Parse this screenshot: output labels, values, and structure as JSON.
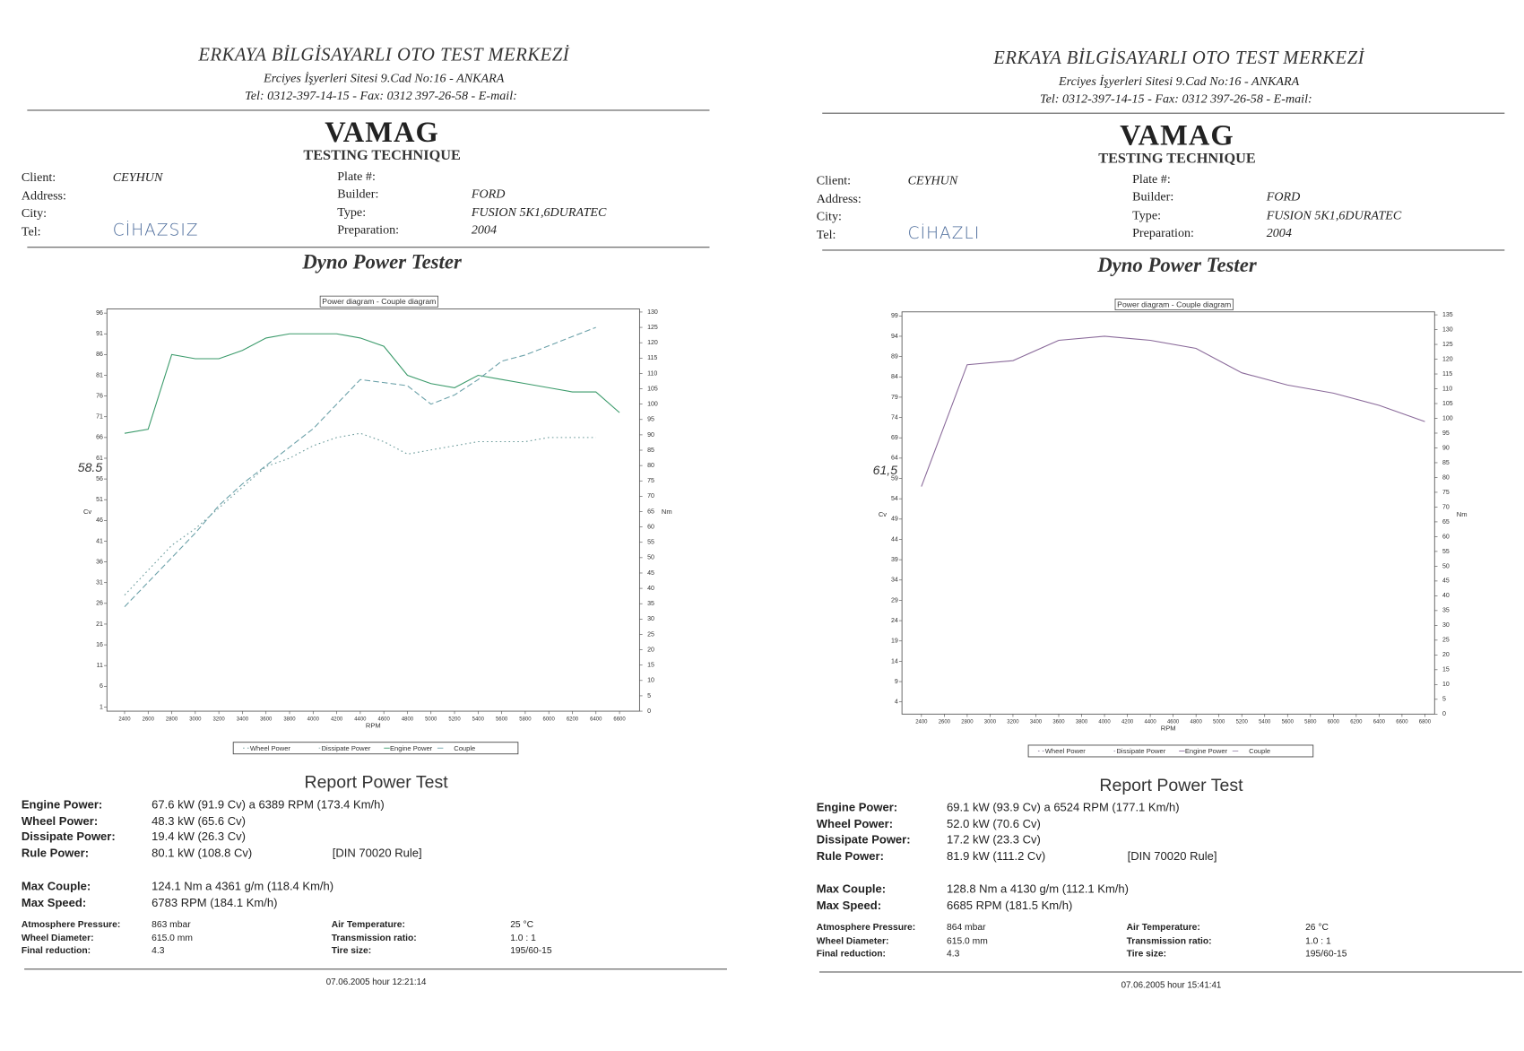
{
  "reports": [
    {
      "header": {
        "company": "ERKAYA BİLGİSAYARLI OTO TEST MERKEZİ",
        "address": "Erciyes İşyerleri Sitesi 9.Cad No:16 - ANKARA",
        "contact": "Tel: 0312-397-14-15 - Fax: 0312 397-26-58 - E-mail:",
        "brand": "VAMAG",
        "subtitle": "TESTING TECHNIQUE"
      },
      "client_fields": [
        {
          "label": "Client:",
          "value": "CEYHUN"
        },
        {
          "label": "Address:"
        },
        {
          "label": "City:"
        },
        {
          "label": "Tel:",
          "value": "CİHAZSIZ"
        }
      ],
      "vehicle_fields": [
        {
          "label": "Plate #:"
        },
        {
          "label": "Builder:",
          "value": "FORD"
        },
        {
          "label": "Type:",
          "value": "FUSION 5K1,6DURATEC"
        },
        {
          "label": "Preparation:",
          "value": "2004"
        }
      ],
      "section_title": "Dyno Power Tester",
      "chart": {
        "type": "line",
        "title": "Power diagram - Couple diagram",
        "x_label": "RPM",
        "y_label": "Cv",
        "y2_label": "Nm",
        "annotation": "58.5",
        "x": [
          2400,
          2600,
          2800,
          3000,
          3200,
          3400,
          3600,
          3800,
          4000,
          4200,
          4400,
          4600,
          4800,
          5000,
          5200,
          5400,
          5600,
          5800,
          6000,
          6200,
          6400,
          6600
        ],
        "xlim": [
          2250,
          6770
        ],
        "xticks": [
          2400,
          2600,
          2800,
          3000,
          3200,
          3400,
          3600,
          3800,
          4000,
          4200,
          4400,
          4600,
          4800,
          5000,
          5200,
          5400,
          5600,
          5800,
          6000,
          6200,
          6400,
          6600
        ],
        "ylim": [
          0,
          97
        ],
        "yticks": [
          1,
          6,
          11,
          16,
          21,
          26,
          31,
          36,
          41,
          46,
          51,
          56,
          61,
          66,
          71,
          76,
          81,
          86,
          91,
          96
        ],
        "y2lim": [
          0,
          131
        ],
        "y2ticks": [
          0,
          5,
          10,
          15,
          20,
          25,
          30,
          35,
          40,
          45,
          50,
          55,
          60,
          65,
          70,
          75,
          80,
          85,
          90,
          95,
          100,
          105,
          110,
          115,
          120,
          125,
          130
        ],
        "series": [
          {
            "name": "Wheel Power",
            "color": "#6a9a9a",
            "style": "dotted",
            "values": [
              28,
              34,
              40,
              44,
              49,
              54,
              59,
              61,
              64,
              66,
              67,
              65,
              62,
              63,
              64,
              65,
              65,
              65,
              66,
              66,
              66,
              null
            ]
          },
          {
            "name": "Dissipate Power",
            "color": "#8aa",
            "style": "dotted",
            "values": [
              null,
              null,
              null,
              null,
              null,
              null,
              null,
              null,
              null,
              null,
              null,
              null,
              null,
              null,
              null,
              null,
              null,
              null,
              null,
              null,
              null,
              null
            ]
          },
          {
            "name": "Engine Power",
            "color": "#3a9a6a",
            "style": "solid",
            "values": [
              67,
              68,
              86,
              85,
              85,
              87,
              90,
              91,
              91,
              91,
              90,
              88,
              81,
              79,
              78,
              81,
              80,
              79,
              78,
              77,
              77,
              72
            ]
          },
          {
            "name": "Couple",
            "color": "#6aa0a8",
            "style": "dashed",
            "axis": "y2",
            "values": [
              34,
              42,
              50,
              58,
              67,
              74,
              80,
              86,
              92,
              100,
              108,
              107,
              106,
              100,
              103,
              108,
              114,
              116,
              119,
              122,
              125,
              null
            ]
          }
        ]
      },
      "report": {
        "title": "Report Power Test",
        "results": [
          {
            "label": "Engine Power:",
            "value": "67.6 kW (91.9 Cv) a 6389 RPM (173.4 Km/h)"
          },
          {
            "label": "Wheel Power:",
            "value": "48.3 kW (65.6 Cv)"
          },
          {
            "label": "Dissipate Power:",
            "value": "19.4 kW (26.3 Cv)"
          },
          {
            "label": "Rule Power:",
            "value": "80.1 kW (108.8 Cv)",
            "note": "[DIN 70020 Rule]"
          }
        ],
        "max": [
          {
            "label": "Max Couple:",
            "value": "124.1 Nm a 4361 g/m (118.4 Km/h)"
          },
          {
            "label": "Max Speed:",
            "value": "6783 RPM (184.1 Km/h)"
          }
        ],
        "conditions": [
          {
            "label": "Atmosphere Pressure:",
            "value": "863 mbar"
          },
          {
            "label": "Air Temperature:",
            "value": "25 °C"
          },
          {
            "label": "Wheel Diameter:",
            "value": "615.0 mm"
          },
          {
            "label": "Transmission ratio:",
            "value": "1.0 : 1"
          },
          {
            "label": "Final reduction:",
            "value": "4.3"
          },
          {
            "label": "Tire size:",
            "value": "195/60-15"
          }
        ]
      },
      "footer": "07.06.2005 hour 12:21:14"
    },
    {
      "header": {
        "company": "ERKAYA BİLGİSAYARLI OTO TEST MERKEZİ",
        "address": "Erciyes İşyerleri Sitesi 9.Cad No:16 - ANKARA",
        "contact": "Tel: 0312-397-14-15 - Fax: 0312 397-26-58 - E-mail:",
        "brand": "VAMAG",
        "subtitle": "TESTING TECHNIQUE"
      },
      "client_fields": [
        {
          "label": "Client:",
          "value": "CEYHUN"
        },
        {
          "label": "Address:"
        },
        {
          "label": "City:"
        },
        {
          "label": "Tel:",
          "value": "CİHAZLI"
        }
      ],
      "vehicle_fields": [
        {
          "label": "Plate #:"
        },
        {
          "label": "Builder:",
          "value": "FORD"
        },
        {
          "label": "Type:",
          "value": "FUSION 5K1,6DURATEC"
        },
        {
          "label": "Preparation:",
          "value": "2004"
        }
      ],
      "section_title": "Dyno Power Tester",
      "chart": {
        "type": "line",
        "title": "Power diagram - Couple diagram",
        "x_label": "RPM",
        "y_label": "Cv",
        "y2_label": "Nm",
        "annotation": "61,5",
        "x": [
          2400,
          2800,
          3200,
          3600,
          4000,
          4400,
          4800,
          5200,
          5600,
          6000,
          6400,
          6800
        ],
        "xlim": [
          2230,
          6885
        ],
        "xticks": [
          2400,
          2600,
          2800,
          3000,
          3200,
          3400,
          3600,
          3800,
          4000,
          4200,
          4400,
          4600,
          4800,
          5000,
          5200,
          5400,
          5600,
          5800,
          6000,
          6200,
          6400,
          6600,
          6800
        ],
        "ylim": [
          1,
          100
        ],
        "yticks": [
          4,
          9,
          14,
          19,
          24,
          29,
          34,
          39,
          44,
          49,
          54,
          59,
          64,
          69,
          74,
          79,
          84,
          89,
          94,
          99
        ],
        "y2lim": [
          0,
          136
        ],
        "y2ticks": [
          0,
          5,
          10,
          15,
          20,
          25,
          30,
          35,
          40,
          45,
          50,
          55,
          60,
          65,
          70,
          75,
          80,
          85,
          90,
          95,
          100,
          105,
          110,
          115,
          120,
          125,
          130,
          135
        ],
        "series": [
          {
            "name": "Wheel Power",
            "color": "#8a7a9a",
            "style": "dotted",
            "values": [
              null,
              null,
              null,
              null,
              null,
              null,
              null,
              null,
              null,
              null,
              null,
              null
            ]
          },
          {
            "name": "Dissipate Power",
            "color": "#9a8aaa",
            "style": "dotted",
            "values": [
              null,
              null,
              null,
              null,
              null,
              null,
              null,
              null,
              null,
              null,
              null,
              null
            ]
          },
          {
            "name": "Engine Power",
            "color": "#8a6a9a",
            "style": "solid",
            "values": [
              57,
              87,
              88,
              93,
              94,
              93,
              91,
              85,
              82,
              80,
              77,
              73
            ]
          },
          {
            "name": "Couple",
            "color": "#9a8aaa",
            "style": "dashed",
            "axis": "y2",
            "values": [
              null,
              null,
              null,
              null,
              null,
              null,
              null,
              null,
              null,
              null,
              null,
              null
            ]
          }
        ]
      },
      "report": {
        "title": "Report Power Test",
        "results": [
          {
            "label": "Engine Power:",
            "value": "69.1 kW (93.9 Cv) a 6524 RPM (177.1 Km/h)"
          },
          {
            "label": "Wheel Power:",
            "value": "52.0 kW (70.6 Cv)"
          },
          {
            "label": "Dissipate Power:",
            "value": "17.2 kW (23.3 Cv)"
          },
          {
            "label": "Rule Power:",
            "value": "81.9 kW (111.2 Cv)",
            "note": "[DIN 70020 Rule]"
          }
        ],
        "max": [
          {
            "label": "Max Couple:",
            "value": "128.8 Nm a 4130 g/m (112.1 Km/h)"
          },
          {
            "label": "Max Speed:",
            "value": "6685 RPM (181.5 Km/h)"
          }
        ],
        "conditions": [
          {
            "label": "Atmosphere Pressure:",
            "value": "864 mbar"
          },
          {
            "label": "Air Temperature:",
            "value": "26 °C"
          },
          {
            "label": "Wheel Diameter:",
            "value": "615.0 mm"
          },
          {
            "label": "Transmission ratio:",
            "value": "1.0 : 1"
          },
          {
            "label": "Final reduction:",
            "value": "4.3"
          },
          {
            "label": "Tire size:",
            "value": "195/60-15"
          }
        ]
      },
      "footer": "07.06.2005 hour 15:41:41"
    }
  ]
}
